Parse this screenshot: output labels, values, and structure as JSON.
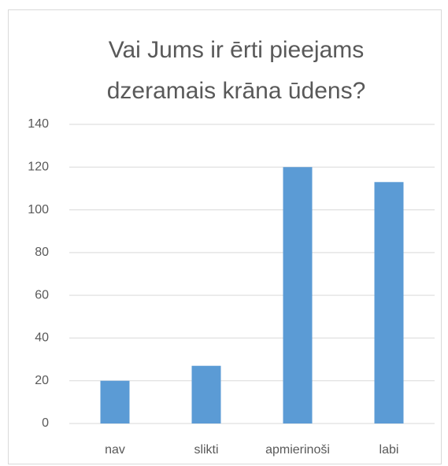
{
  "chart_data": {
    "type": "bar",
    "title": "Vai Jums ir ērti pieejams dzeramais krāna ūdens?",
    "categories": [
      "nav",
      "slikti",
      "apmierinoši",
      "labi"
    ],
    "values": [
      20,
      27,
      120,
      113
    ],
    "color": "#5b9bd5",
    "ylim": [
      0,
      140
    ],
    "yticks": [
      0,
      20,
      40,
      60,
      80,
      100,
      120,
      140
    ],
    "grid": true
  }
}
